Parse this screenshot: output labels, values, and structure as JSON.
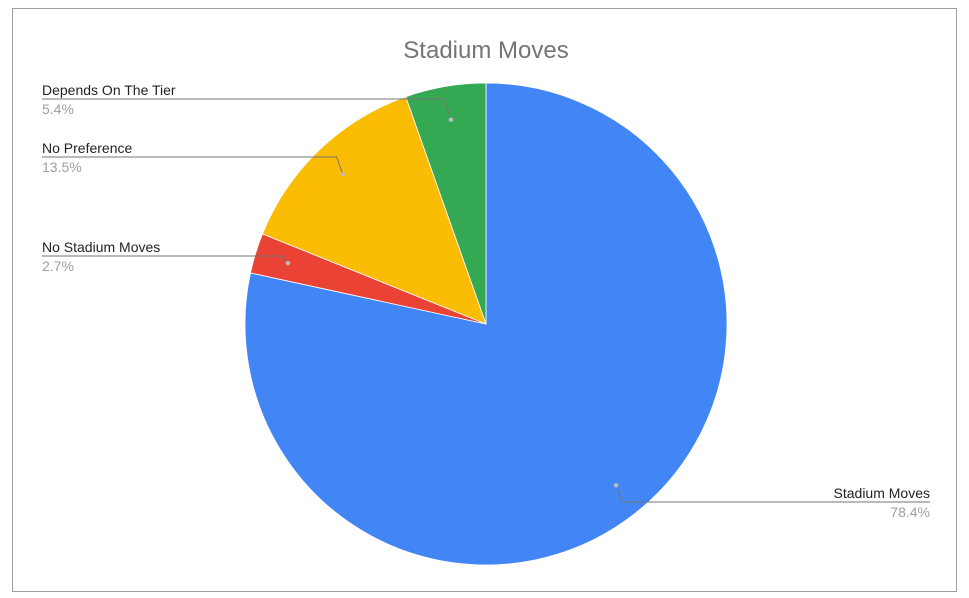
{
  "chart_data": {
    "type": "pie",
    "title": "Stadium Moves",
    "slices": [
      {
        "name": "Stadium Moves",
        "value": 78.4,
        "label": "78.4%",
        "color": "#4285f4"
      },
      {
        "name": "No Stadium Moves",
        "value": 2.7,
        "label": "2.7%",
        "color": "#ea4335"
      },
      {
        "name": "No Preference",
        "value": 13.5,
        "label": "13.5%",
        "color": "#fbbc04"
      },
      {
        "name": "Depends On The Tier",
        "value": 5.4,
        "label": "5.4%",
        "color": "#34a853"
      }
    ],
    "start_angle": "12 o'clock",
    "direction": "clockwise",
    "legend": "labeled"
  }
}
